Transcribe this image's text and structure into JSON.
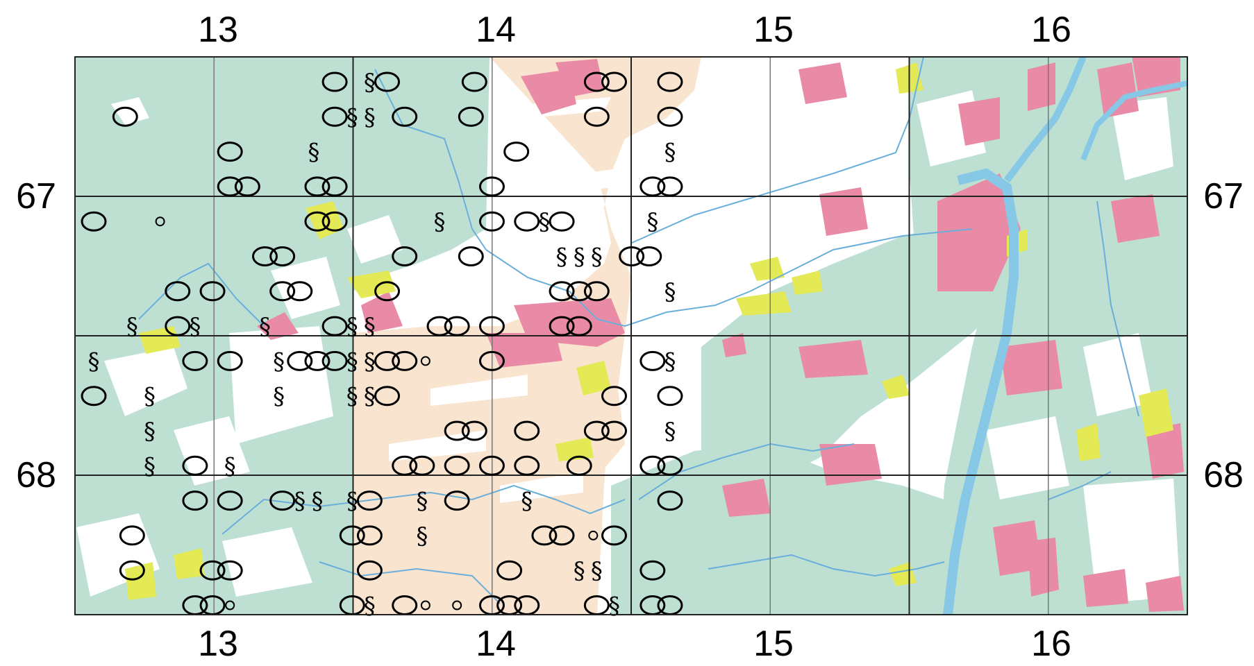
{
  "axes": {
    "top_labels": [
      "13",
      "14",
      "15",
      "16"
    ],
    "bottom_labels": [
      "13",
      "14",
      "15",
      "16"
    ],
    "left_labels": [
      "67",
      "68"
    ],
    "right_labels": [
      "67",
      "68"
    ]
  },
  "colors": {
    "forest": "#bde0d2",
    "farmland": "#f8e4cf",
    "urban": "#e98ba6",
    "wetland": "#e3ea55",
    "water": "#79bde0",
    "river_wide": "#86c8e6",
    "grid_major": "#222222",
    "grid_minor": "#888888"
  },
  "legend_symbols": {
    "oval": "large-oval-symbol",
    "small_circle": "small-circle-symbol",
    "section": "§"
  },
  "symbols": [
    {
      "t": "o",
      "c": 1,
      "r": 1
    },
    {
      "t": "o",
      "c": 7,
      "r": 0
    },
    {
      "t": "s",
      "c": 8,
      "r": 0
    },
    {
      "t": "o",
      "c": 8.5,
      "r": 0
    },
    {
      "t": "o",
      "c": 11,
      "r": 0
    },
    {
      "t": "o",
      "c": 14.5,
      "r": 0
    },
    {
      "t": "o",
      "c": 15,
      "r": 0
    },
    {
      "t": "o",
      "c": 16.6,
      "r": 0
    },
    {
      "t": "o",
      "c": 7,
      "r": 1
    },
    {
      "t": "s",
      "c": 7.5,
      "r": 1
    },
    {
      "t": "s",
      "c": 8,
      "r": 1
    },
    {
      "t": "o",
      "c": 9,
      "r": 1
    },
    {
      "t": "o",
      "c": 10.9,
      "r": 1
    },
    {
      "t": "o",
      "c": 14.5,
      "r": 1
    },
    {
      "t": "o",
      "c": 16.6,
      "r": 1
    },
    {
      "t": "o",
      "c": 4,
      "r": 2
    },
    {
      "t": "s",
      "c": 6.4,
      "r": 2
    },
    {
      "t": "o",
      "c": 12.2,
      "r": 2
    },
    {
      "t": "s",
      "c": 16.6,
      "r": 2
    },
    {
      "t": "o",
      "c": 4,
      "r": 3
    },
    {
      "t": "o",
      "c": 4.5,
      "r": 3
    },
    {
      "t": "o",
      "c": 6.5,
      "r": 3
    },
    {
      "t": "o",
      "c": 7,
      "r": 3
    },
    {
      "t": "o",
      "c": 11.5,
      "r": 3
    },
    {
      "t": "o",
      "c": 16.1,
      "r": 3
    },
    {
      "t": "o",
      "c": 16.6,
      "r": 3
    },
    {
      "t": "o",
      "c": 0.1,
      "r": 4
    },
    {
      "t": "c",
      "c": 2,
      "r": 4
    },
    {
      "t": "o",
      "c": 6.5,
      "r": 4
    },
    {
      "t": "o",
      "c": 7,
      "r": 4
    },
    {
      "t": "s",
      "c": 10,
      "r": 4
    },
    {
      "t": "o",
      "c": 11.5,
      "r": 4
    },
    {
      "t": "o",
      "c": 12.5,
      "r": 4
    },
    {
      "t": "s",
      "c": 13,
      "r": 4
    },
    {
      "t": "o",
      "c": 13.5,
      "r": 4
    },
    {
      "t": "s",
      "c": 16.1,
      "r": 4
    },
    {
      "t": "o",
      "c": 5,
      "r": 5
    },
    {
      "t": "o",
      "c": 5.5,
      "r": 5
    },
    {
      "t": "o",
      "c": 9,
      "r": 5
    },
    {
      "t": "o",
      "c": 10.9,
      "r": 5
    },
    {
      "t": "s",
      "c": 13.5,
      "r": 5
    },
    {
      "t": "s",
      "c": 14,
      "r": 5
    },
    {
      "t": "s",
      "c": 14.5,
      "r": 5
    },
    {
      "t": "o",
      "c": 15.5,
      "r": 5
    },
    {
      "t": "o",
      "c": 16,
      "r": 5
    },
    {
      "t": "o",
      "c": 2.5,
      "r": 6
    },
    {
      "t": "o",
      "c": 3.5,
      "r": 6
    },
    {
      "t": "o",
      "c": 5.5,
      "r": 6
    },
    {
      "t": "o",
      "c": 6,
      "r": 6
    },
    {
      "t": "o",
      "c": 8.5,
      "r": 6
    },
    {
      "t": "o",
      "c": 13.5,
      "r": 6
    },
    {
      "t": "o",
      "c": 14,
      "r": 6
    },
    {
      "t": "o",
      "c": 14.5,
      "r": 6
    },
    {
      "t": "s",
      "c": 16.6,
      "r": 6
    },
    {
      "t": "s",
      "c": 1.2,
      "r": 7
    },
    {
      "t": "o",
      "c": 2.5,
      "r": 7
    },
    {
      "t": "s",
      "c": 3,
      "r": 7
    },
    {
      "t": "s",
      "c": 5,
      "r": 7
    },
    {
      "t": "o",
      "c": 7,
      "r": 7
    },
    {
      "t": "s",
      "c": 7.5,
      "r": 7
    },
    {
      "t": "s",
      "c": 8,
      "r": 7
    },
    {
      "t": "o",
      "c": 10,
      "r": 7
    },
    {
      "t": "o",
      "c": 10.5,
      "r": 7
    },
    {
      "t": "o",
      "c": 11.5,
      "r": 7
    },
    {
      "t": "o",
      "c": 13.5,
      "r": 7
    },
    {
      "t": "o",
      "c": 14,
      "r": 7
    },
    {
      "t": "s",
      "c": 0.1,
      "r": 8
    },
    {
      "t": "o",
      "c": 3,
      "r": 8
    },
    {
      "t": "o",
      "c": 4,
      "r": 8
    },
    {
      "t": "s",
      "c": 5.4,
      "r": 8
    },
    {
      "t": "o",
      "c": 6,
      "r": 8
    },
    {
      "t": "o",
      "c": 6.5,
      "r": 8
    },
    {
      "t": "o",
      "c": 7,
      "r": 8
    },
    {
      "t": "s",
      "c": 7.5,
      "r": 8
    },
    {
      "t": "s",
      "c": 8,
      "r": 8
    },
    {
      "t": "o",
      "c": 8.5,
      "r": 8
    },
    {
      "t": "o",
      "c": 9,
      "r": 8
    },
    {
      "t": "c",
      "c": 9.6,
      "r": 8
    },
    {
      "t": "o",
      "c": 11.5,
      "r": 8
    },
    {
      "t": "o",
      "c": 16.1,
      "r": 8
    },
    {
      "t": "s",
      "c": 16.6,
      "r": 8
    },
    {
      "t": "o",
      "c": 0.1,
      "r": 9
    },
    {
      "t": "s",
      "c": 1.7,
      "r": 9
    },
    {
      "t": "s",
      "c": 5.4,
      "r": 9
    },
    {
      "t": "s",
      "c": 7.5,
      "r": 9
    },
    {
      "t": "s",
      "c": 8,
      "r": 9
    },
    {
      "t": "o",
      "c": 8.5,
      "r": 9
    },
    {
      "t": "o",
      "c": 15,
      "r": 9
    },
    {
      "t": "o",
      "c": 16.6,
      "r": 9
    },
    {
      "t": "s",
      "c": 1.7,
      "r": 10
    },
    {
      "t": "o",
      "c": 10.5,
      "r": 10
    },
    {
      "t": "o",
      "c": 11,
      "r": 10
    },
    {
      "t": "o",
      "c": 12.5,
      "r": 10
    },
    {
      "t": "o",
      "c": 14.5,
      "r": 10
    },
    {
      "t": "o",
      "c": 15,
      "r": 10
    },
    {
      "t": "s",
      "c": 16.6,
      "r": 10
    },
    {
      "t": "s",
      "c": 1.7,
      "r": 11
    },
    {
      "t": "o",
      "c": 3,
      "r": 11
    },
    {
      "t": "s",
      "c": 4,
      "r": 11
    },
    {
      "t": "o",
      "c": 9,
      "r": 11
    },
    {
      "t": "o",
      "c": 9.5,
      "r": 11
    },
    {
      "t": "o",
      "c": 10.5,
      "r": 11
    },
    {
      "t": "o",
      "c": 11.5,
      "r": 11
    },
    {
      "t": "o",
      "c": 12.5,
      "r": 11
    },
    {
      "t": "o",
      "c": 14,
      "r": 11
    },
    {
      "t": "o",
      "c": 16.1,
      "r": 11
    },
    {
      "t": "o",
      "c": 16.6,
      "r": 11
    },
    {
      "t": "o",
      "c": 3,
      "r": 12
    },
    {
      "t": "o",
      "c": 4,
      "r": 12
    },
    {
      "t": "o",
      "c": 5.5,
      "r": 12
    },
    {
      "t": "s",
      "c": 6,
      "r": 12
    },
    {
      "t": "s",
      "c": 6.5,
      "r": 12
    },
    {
      "t": "s",
      "c": 7.5,
      "r": 12
    },
    {
      "t": "o",
      "c": 8,
      "r": 12
    },
    {
      "t": "s",
      "c": 9.5,
      "r": 12
    },
    {
      "t": "o",
      "c": 10.5,
      "r": 12
    },
    {
      "t": "s",
      "c": 12.5,
      "r": 12
    },
    {
      "t": "o",
      "c": 16.6,
      "r": 12
    },
    {
      "t": "o",
      "c": 1.2,
      "r": 13
    },
    {
      "t": "o",
      "c": 7.5,
      "r": 13
    },
    {
      "t": "o",
      "c": 8,
      "r": 13
    },
    {
      "t": "s",
      "c": 9.5,
      "r": 13
    },
    {
      "t": "o",
      "c": 13,
      "r": 13
    },
    {
      "t": "o",
      "c": 13.5,
      "r": 13
    },
    {
      "t": "c",
      "c": 14.4,
      "r": 13
    },
    {
      "t": "o",
      "c": 15,
      "r": 13
    },
    {
      "t": "o",
      "c": 1.2,
      "r": 14
    },
    {
      "t": "o",
      "c": 3.5,
      "r": 14
    },
    {
      "t": "o",
      "c": 4,
      "r": 14
    },
    {
      "t": "o",
      "c": 8,
      "r": 14
    },
    {
      "t": "o",
      "c": 12,
      "r": 14
    },
    {
      "t": "s",
      "c": 14,
      "r": 14
    },
    {
      "t": "s",
      "c": 14.5,
      "r": 14
    },
    {
      "t": "o",
      "c": 16.1,
      "r": 14
    },
    {
      "t": "o",
      "c": 3,
      "r": 15
    },
    {
      "t": "o",
      "c": 3.5,
      "r": 15
    },
    {
      "t": "c",
      "c": 4,
      "r": 15
    },
    {
      "t": "o",
      "c": 7.5,
      "r": 15
    },
    {
      "t": "s",
      "c": 8,
      "r": 15
    },
    {
      "t": "o",
      "c": 9,
      "r": 15
    },
    {
      "t": "c",
      "c": 9.6,
      "r": 15
    },
    {
      "t": "c",
      "c": 10.5,
      "r": 15
    },
    {
      "t": "o",
      "c": 11.5,
      "r": 15
    },
    {
      "t": "o",
      "c": 12,
      "r": 15
    },
    {
      "t": "o",
      "c": 12.5,
      "r": 15
    },
    {
      "t": "o",
      "c": 14.5,
      "r": 15
    },
    {
      "t": "s",
      "c": 15,
      "r": 15
    },
    {
      "t": "o",
      "c": 16.1,
      "r": 15
    },
    {
      "t": "o",
      "c": 16.6,
      "r": 15
    }
  ]
}
